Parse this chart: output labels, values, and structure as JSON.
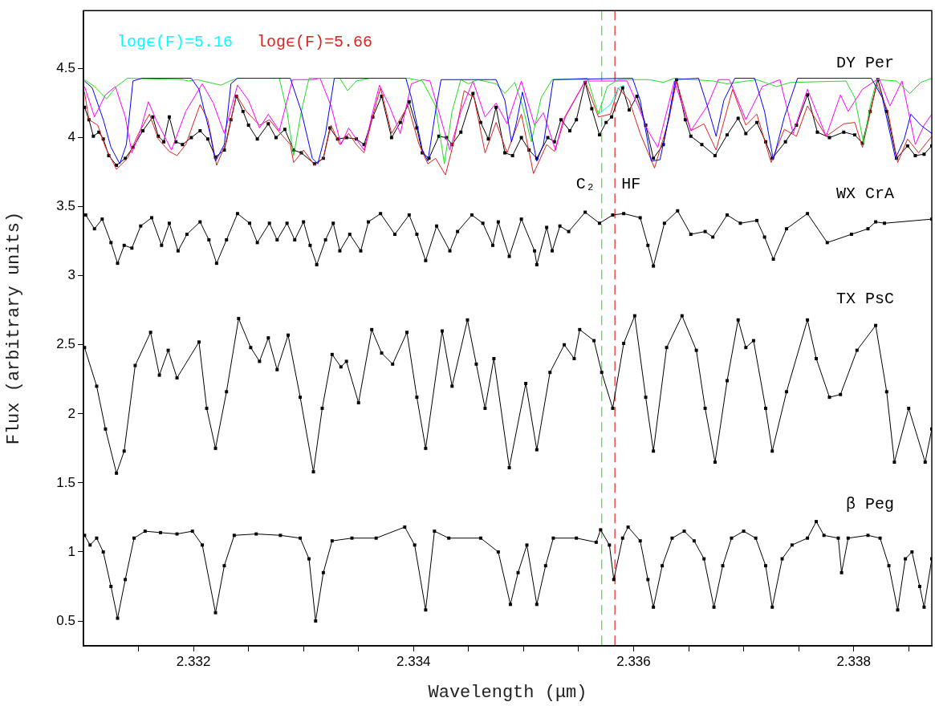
{
  "chart_data": {
    "type": "line",
    "xlabel": "Wavelength (μm)",
    "ylabel": "Flux (arbitrary units)",
    "xlim": [
      2.331,
      2.33871
    ],
    "ylim": [
      0.32,
      4.92
    ],
    "xticks": [
      {
        "value": 2.3315,
        "label": null
      },
      2.332,
      {
        "value": 2.3325,
        "label": null
      },
      {
        "value": 2.333,
        "label": null
      },
      {
        "value": 2.3335,
        "label": null
      },
      2.334,
      {
        "value": 2.3345,
        "label": null
      },
      {
        "value": 2.335,
        "label": null
      },
      {
        "value": 2.3355,
        "label": null
      },
      2.336,
      {
        "value": 2.3365,
        "label": null
      },
      {
        "value": 2.337,
        "label": null
      },
      {
        "value": 2.3375,
        "label": null
      },
      2.338,
      {
        "value": 2.3385,
        "label": null
      }
    ],
    "yticks": [
      0.5,
      1,
      1.5,
      2,
      2.5,
      3,
      3.5,
      4,
      4.5
    ],
    "grid": false,
    "legend": "top left",
    "ref_lines": [
      {
        "axis": "x",
        "value": 2.33571,
        "label": "C₂",
        "color": "#44dd44",
        "line_style": "dashed"
      },
      {
        "axis": "x",
        "value": 2.33583,
        "label": "HF",
        "color": "#ee2222",
        "line_style": "dashed"
      }
    ],
    "series": [
      {
        "color": "#0000ff",
        "type": "line",
        "marker": "none",
        "x": [
          2.33101,
          2.33108,
          2.33118,
          2.33125,
          2.33133,
          2.33139,
          2.33145,
          2.33153,
          2.33198,
          2.33205,
          2.33215,
          2.3322,
          2.33228,
          2.33234,
          2.3324,
          2.33288,
          2.33298,
          2.33308,
          2.33313,
          2.3332,
          2.33328,
          2.33393,
          2.33398,
          2.33408,
          2.33413,
          2.3342,
          2.33425,
          2.3347,
          2.33475,
          2.33483,
          2.33489,
          2.33493,
          2.33499,
          2.33503,
          2.33512,
          2.33518,
          2.33527,
          2.33599,
          2.33606,
          2.33616,
          2.33624,
          2.33632,
          2.33638,
          2.33659,
          2.33667,
          2.33675,
          2.33682,
          2.33692,
          2.3371,
          2.33719,
          2.33727,
          2.33737,
          2.33749,
          2.33816,
          2.33826,
          2.33838,
          2.33846,
          2.33852,
          2.33861,
          2.33871
        ],
        "values": [
          4.41,
          4.36,
          4.13,
          3.93,
          3.81,
          3.95,
          4.41,
          4.43,
          4.43,
          4.35,
          4.03,
          3.83,
          3.95,
          4.39,
          4.43,
          4.43,
          4.19,
          3.85,
          3.81,
          4.03,
          4.43,
          4.43,
          4.29,
          3.91,
          3.83,
          4.19,
          4.42,
          4.42,
          4.42,
          4.27,
          3.97,
          4.09,
          4.33,
          4.19,
          3.83,
          3.95,
          4.42,
          4.43,
          4.27,
          3.83,
          3.84,
          4.15,
          4.42,
          4.43,
          4.23,
          4.01,
          4.27,
          4.43,
          4.43,
          4.19,
          3.84,
          4.15,
          4.43,
          4.43,
          4.29,
          3.85,
          3.99,
          4.17,
          4.09,
          4.03
        ]
      },
      {
        "color": "#22dd22",
        "type": "line",
        "marker": "none",
        "x": [
          2.33101,
          2.3311,
          2.33121,
          2.3313,
          2.3314,
          2.3319,
          2.33195,
          2.33203,
          2.33225,
          2.33233,
          2.3324,
          2.33278,
          2.33285,
          2.33291,
          2.33298,
          2.33305,
          2.33333,
          2.3334,
          2.33348,
          2.3336,
          2.33395,
          2.33408,
          2.3342,
          2.33428,
          2.33435,
          2.33443,
          2.3345,
          2.33458,
          2.33475,
          2.33483,
          2.33492,
          2.33499,
          2.33507,
          2.33516,
          2.33526,
          2.33558,
          2.33568,
          2.33576,
          2.33586,
          2.33614,
          2.33627,
          2.33637,
          2.33672,
          2.33685,
          2.33712,
          2.3373,
          2.33743,
          2.33793,
          2.33801,
          2.33809,
          2.33815,
          2.33821,
          2.33839,
          2.33851,
          2.33861,
          2.33871
        ],
        "values": [
          4.42,
          4.37,
          4.28,
          4.37,
          4.43,
          4.42,
          4.41,
          4.42,
          4.38,
          4.41,
          4.43,
          4.43,
          4.19,
          3.87,
          4.19,
          4.43,
          4.43,
          4.34,
          4.41,
          4.43,
          4.43,
          4.41,
          4.23,
          3.81,
          4.19,
          4.42,
          4.39,
          4.42,
          4.39,
          4.32,
          4.4,
          4.23,
          3.97,
          4.29,
          4.42,
          4.43,
          4.17,
          4.37,
          4.42,
          4.42,
          4.4,
          4.43,
          4.41,
          4.39,
          4.42,
          4.37,
          4.4,
          4.41,
          4.29,
          3.96,
          4.23,
          4.42,
          4.41,
          4.32,
          4.4,
          4.43
        ]
      },
      {
        "color": "#ff00ff",
        "type": "line",
        "marker": "none",
        "x": [
          2.33101,
          2.3311,
          2.3312,
          2.33129,
          2.33138,
          2.33144,
          2.33151,
          2.33159,
          2.33166,
          2.3318,
          2.33193,
          2.33208,
          2.33218,
          2.33228,
          2.3324,
          2.3325,
          2.3326,
          2.33268,
          2.33278,
          2.3329,
          2.33308,
          2.33315,
          2.33325,
          2.33334,
          2.33341,
          2.33348,
          2.33355,
          2.33363,
          2.33369,
          2.33378,
          2.33388,
          2.33398,
          2.33408,
          2.33415,
          2.33425,
          2.33433,
          2.33443,
          2.33454,
          2.33465,
          2.33475,
          2.33485,
          2.33498,
          2.3351,
          2.33518,
          2.33529,
          2.33536,
          2.33546,
          2.33556,
          2.33594,
          2.33604,
          2.33613,
          2.33622,
          2.33632,
          2.33637,
          2.33652,
          2.33667,
          2.33677,
          2.33687,
          2.33702,
          2.33717,
          2.33733,
          2.33745,
          2.33758,
          2.33768,
          2.33775,
          2.33788,
          2.33795,
          2.33808,
          2.33823,
          2.33833,
          2.33844,
          2.33856,
          2.33864,
          2.33871
        ],
        "values": [
          4.37,
          4.15,
          4.31,
          4.37,
          4.15,
          3.89,
          4.03,
          4.26,
          4.13,
          3.91,
          4.19,
          4.39,
          4.25,
          4.03,
          4.38,
          4.27,
          4.07,
          4.17,
          4.05,
          4.42,
          4.42,
          4.43,
          4.23,
          3.95,
          4.07,
          3.99,
          3.91,
          4.19,
          4.38,
          4.23,
          4.03,
          4.39,
          4.42,
          4.41,
          4.13,
          3.91,
          4.19,
          4.41,
          4.15,
          4.25,
          4.1,
          4.41,
          4.09,
          4.18,
          3.91,
          4.13,
          4.27,
          4.41,
          4.41,
          4.23,
          4.05,
          3.93,
          4.25,
          4.41,
          4.05,
          4.23,
          4.42,
          4.42,
          4.13,
          4.37,
          4.42,
          4.03,
          4.35,
          4.15,
          4.01,
          4.31,
          4.19,
          4.35,
          4.43,
          4.23,
          4.41,
          3.95,
          4.09,
          4.17
        ]
      },
      {
        "name": "logϵ(F)=5.16",
        "color": "#00ffff",
        "type": "line",
        "marker": "none",
        "x": [
          2.33568,
          2.33579,
          2.33586,
          2.33591
        ],
        "values": [
          4.17,
          4.24,
          4.36,
          4.38
        ]
      },
      {
        "name": "logϵ(F)=5.66",
        "color": "#dd2222",
        "type": "line",
        "marker": "none",
        "x": [
          2.33101,
          2.33105,
          2.33113,
          2.3312,
          2.3313,
          2.3314,
          2.3315,
          2.3316,
          2.33168,
          2.33178,
          2.33185,
          2.33193,
          2.33206,
          2.33213,
          2.33221,
          2.3323,
          2.33239,
          2.33248,
          2.3326,
          2.33269,
          2.33278,
          2.33288,
          2.33291,
          2.333,
          2.3331,
          2.33318,
          2.33325,
          2.33333,
          2.33341,
          2.33348,
          2.33355,
          2.33364,
          2.3337,
          2.3338,
          2.33395,
          2.33405,
          2.33413,
          2.3342,
          2.33429,
          2.33436,
          2.33446,
          2.33455,
          2.33465,
          2.33475,
          2.33485,
          2.33498,
          2.33509,
          2.33521,
          2.33528,
          2.33538,
          2.33556,
          2.33568,
          2.33579,
          2.33586,
          2.33596,
          2.33606,
          2.33619,
          2.33632,
          2.33639,
          2.33652,
          2.33664,
          2.33675,
          2.3369,
          2.33702,
          2.33712,
          2.33725,
          2.33737,
          2.33748,
          2.33758,
          2.33775,
          2.33791,
          2.33801,
          2.33808,
          2.33821,
          2.33831,
          2.3384,
          2.33849,
          2.33859,
          2.33871
        ],
        "values": [
          4.33,
          4.13,
          4.09,
          3.93,
          3.77,
          3.85,
          4.03,
          4.17,
          3.99,
          3.9,
          3.87,
          3.95,
          4.24,
          4.13,
          3.8,
          3.97,
          4.31,
          4.19,
          4.09,
          4.13,
          4.04,
          3.95,
          3.82,
          3.91,
          3.8,
          3.85,
          4.09,
          3.95,
          4.03,
          3.95,
          3.89,
          4.19,
          4.36,
          4.03,
          4.23,
          3.95,
          3.81,
          3.85,
          3.73,
          3.95,
          4.34,
          4.29,
          3.89,
          4.11,
          3.89,
          4.17,
          3.74,
          3.95,
          3.9,
          4.15,
          4.41,
          4.15,
          4.17,
          4.36,
          4.27,
          4.03,
          3.78,
          4.13,
          4.41,
          4.05,
          4.1,
          3.91,
          4.35,
          4.09,
          4.17,
          3.82,
          4.06,
          4.01,
          4.23,
          4.01,
          4.1,
          4.11,
          3.93,
          4.39,
          4.19,
          3.82,
          3.99,
          3.89,
          4.01
        ]
      },
      {
        "name": "DY Per",
        "color": "#000000",
        "type": "line",
        "marker": "square",
        "x": [
          2.33101,
          2.33105,
          2.33109,
          2.33114,
          2.33118,
          2.33123,
          2.3313,
          2.33138,
          2.33145,
          2.33154,
          2.33163,
          2.33168,
          2.33173,
          2.33178,
          2.33184,
          2.3319,
          2.33198,
          2.33206,
          2.33213,
          2.3322,
          2.33228,
          2.33234,
          2.33239,
          2.33245,
          2.3325,
          2.33258,
          2.33268,
          2.33275,
          2.33283,
          2.33291,
          2.33298,
          2.3331,
          2.33318,
          2.33324,
          2.33331,
          2.33339,
          2.33348,
          2.33355,
          2.33363,
          2.33371,
          2.3338,
          2.33388,
          2.33396,
          2.33403,
          2.33408,
          2.33414,
          2.33423,
          2.3343,
          2.33435,
          2.33443,
          2.33454,
          2.33461,
          2.33468,
          2.33475,
          2.33483,
          2.3349,
          2.33498,
          2.33505,
          2.33512,
          2.33522,
          2.33528,
          2.33534,
          2.33542,
          2.33548,
          2.33556,
          2.33562,
          2.33569,
          2.33575,
          2.3358,
          2.3359,
          2.33596,
          2.33603,
          2.33611,
          2.33618,
          2.33627,
          2.33639,
          2.33647,
          2.33652,
          2.33662,
          2.33674,
          2.33685,
          2.33695,
          2.33702,
          2.33712,
          2.3372,
          2.33726,
          2.33738,
          2.33748,
          2.33758,
          2.33767,
          2.33778,
          2.33791,
          2.33801,
          2.33808,
          2.33815,
          2.33822,
          2.3383,
          2.33839,
          2.33849,
          2.33856,
          2.33864,
          2.33871
        ],
        "values": [
          4.22,
          4.13,
          4.01,
          4.04,
          3.99,
          3.87,
          3.8,
          3.85,
          3.93,
          4.05,
          4.15,
          4.01,
          3.97,
          4.15,
          3.97,
          3.95,
          4.0,
          4.05,
          3.99,
          3.86,
          3.91,
          4.13,
          4.3,
          4.19,
          4.09,
          3.99,
          4.1,
          4.0,
          4.06,
          3.91,
          3.89,
          3.81,
          3.85,
          4.07,
          3.99,
          4.0,
          3.99,
          3.95,
          4.15,
          4.3,
          4.0,
          4.11,
          4.26,
          4.07,
          3.89,
          3.85,
          4.01,
          4.0,
          3.95,
          4.04,
          4.32,
          4.11,
          3.99,
          4.22,
          3.89,
          3.87,
          4.0,
          3.91,
          3.85,
          4.0,
          3.97,
          4.13,
          4.05,
          4.13,
          4.4,
          4.21,
          4.02,
          4.11,
          4.15,
          4.36,
          4.2,
          4.3,
          4.09,
          3.85,
          3.95,
          4.42,
          4.13,
          4.01,
          3.95,
          3.87,
          4.02,
          4.14,
          4.03,
          4.11,
          3.97,
          3.85,
          3.97,
          4.09,
          4.31,
          4.04,
          4.0,
          4.04,
          4.02,
          3.96,
          4.19,
          4.42,
          4.19,
          3.85,
          3.94,
          3.87,
          3.88,
          3.94
        ]
      },
      {
        "name": "WX CrA",
        "color": "#000000",
        "type": "line",
        "marker": "square",
        "x": [
          2.33102,
          2.3311,
          2.33117,
          2.33125,
          2.33131,
          2.33137,
          2.33144,
          2.33152,
          2.33162,
          2.33171,
          2.33178,
          2.33186,
          2.33194,
          2.33206,
          2.33214,
          2.33221,
          2.3323,
          2.3324,
          2.33251,
          2.33258,
          2.33269,
          2.33276,
          2.33285,
          2.33292,
          2.333,
          2.33306,
          2.33312,
          2.3332,
          2.33327,
          2.33333,
          2.33342,
          2.33352,
          2.33359,
          2.3337,
          2.33383,
          2.33396,
          2.33403,
          2.33411,
          2.33421,
          2.33433,
          2.3344,
          2.33453,
          2.33463,
          2.33472,
          2.33477,
          2.33487,
          2.33498,
          2.3351,
          2.33512,
          2.33521,
          2.33526,
          2.33533,
          2.33541,
          2.33556,
          2.33569,
          2.33581,
          2.33591,
          2.33606,
          2.33613,
          2.33618,
          2.33628,
          2.3364,
          2.33652,
          2.33665,
          2.33672,
          2.33685,
          2.33697,
          2.33712,
          2.33719,
          2.33727,
          2.33739,
          2.33758,
          2.33776,
          2.33798,
          2.33813,
          2.3382,
          2.33828,
          2.33871
        ],
        "values": [
          3.44,
          3.34,
          3.41,
          3.24,
          3.09,
          3.22,
          3.2,
          3.36,
          3.42,
          3.22,
          3.38,
          3.18,
          3.3,
          3.39,
          3.26,
          3.09,
          3.26,
          3.45,
          3.38,
          3.24,
          3.38,
          3.26,
          3.38,
          3.26,
          3.39,
          3.22,
          3.08,
          3.26,
          3.38,
          3.18,
          3.3,
          3.18,
          3.39,
          3.45,
          3.3,
          3.44,
          3.3,
          3.11,
          3.36,
          3.18,
          3.32,
          3.44,
          3.38,
          3.22,
          3.39,
          3.14,
          3.41,
          3.18,
          3.08,
          3.35,
          3.18,
          3.36,
          3.32,
          3.46,
          3.38,
          3.44,
          3.45,
          3.42,
          3.22,
          3.07,
          3.38,
          3.47,
          3.3,
          3.32,
          3.28,
          3.44,
          3.38,
          3.4,
          3.28,
          3.12,
          3.34,
          3.45,
          3.24,
          3.3,
          3.34,
          3.39,
          3.38,
          3.41
        ]
      },
      {
        "name": "TX PsC",
        "color": "#000000",
        "type": "line",
        "marker": "square",
        "x": [
          2.33101,
          2.33112,
          2.3312,
          2.3313,
          2.33137,
          2.33147,
          2.33161,
          2.33169,
          2.33177,
          2.33185,
          2.33205,
          2.33212,
          2.3322,
          2.3323,
          2.33241,
          2.33252,
          2.3326,
          2.33268,
          2.33276,
          2.33286,
          2.33297,
          2.33309,
          2.33317,
          2.33326,
          2.33334,
          2.33339,
          2.3335,
          2.33362,
          2.33371,
          2.33381,
          2.33394,
          2.33403,
          2.33411,
          2.33426,
          2.33435,
          2.33449,
          2.33457,
          2.33465,
          2.33473,
          2.33487,
          2.33502,
          2.33512,
          2.33524,
          2.33537,
          2.33546,
          2.33551,
          2.33564,
          2.33571,
          2.33581,
          2.33591,
          2.33601,
          2.33611,
          2.33618,
          2.3363,
          2.33644,
          2.33657,
          2.33665,
          2.33674,
          2.33685,
          2.33695,
          2.33702,
          2.33709,
          2.3372,
          2.33726,
          2.33739,
          2.33758,
          2.33766,
          2.33778,
          2.33788,
          2.33803,
          2.3382,
          2.3383,
          2.33837,
          2.3385,
          2.33865,
          2.33871
        ],
        "values": [
          2.48,
          2.2,
          1.89,
          1.57,
          1.73,
          2.35,
          2.59,
          2.28,
          2.46,
          2.26,
          2.52,
          2.04,
          1.75,
          2.16,
          2.69,
          2.48,
          2.38,
          2.55,
          2.32,
          2.57,
          2.12,
          1.58,
          2.04,
          2.43,
          2.34,
          2.38,
          2.08,
          2.61,
          2.44,
          2.36,
          2.59,
          2.12,
          1.75,
          2.6,
          2.2,
          2.68,
          2.36,
          2.04,
          2.4,
          1.61,
          2.22,
          1.74,
          2.3,
          2.5,
          2.4,
          2.61,
          2.53,
          2.3,
          2.04,
          2.51,
          2.71,
          2.12,
          1.73,
          2.48,
          2.71,
          2.46,
          2.04,
          1.65,
          2.24,
          2.68,
          2.48,
          2.53,
          2.04,
          1.73,
          2.16,
          2.68,
          2.4,
          2.12,
          2.14,
          2.46,
          2.64,
          2.16,
          1.65,
          2.04,
          1.65,
          1.89
        ]
      },
      {
        "name": "β Peg",
        "color": "#000000",
        "type": "line",
        "marker": "square",
        "x": [
          2.33101,
          2.33106,
          2.33112,
          2.33118,
          2.33125,
          2.33131,
          2.33138,
          2.33146,
          2.33156,
          2.3317,
          2.33185,
          2.33199,
          2.33208,
          2.3322,
          2.33228,
          2.33237,
          2.33257,
          2.33279,
          2.33297,
          2.33305,
          2.33311,
          2.33318,
          2.33326,
          2.33344,
          2.33366,
          2.33392,
          2.33401,
          2.33411,
          2.33419,
          2.33432,
          2.33461,
          2.33477,
          2.33488,
          2.33495,
          2.33503,
          2.33512,
          2.3352,
          2.33527,
          2.33548,
          2.33566,
          2.3357,
          2.33578,
          2.33582,
          2.3359,
          2.33595,
          2.33606,
          2.33613,
          2.33618,
          2.33626,
          2.33635,
          2.33646,
          2.33655,
          2.33664,
          2.33673,
          2.33681,
          2.33689,
          2.337,
          2.33711,
          2.3372,
          2.33726,
          2.33735,
          2.33744,
          2.33758,
          2.33766,
          2.33773,
          2.33786,
          2.33789,
          2.33795,
          2.33813,
          2.33824,
          2.33832,
          2.3384,
          2.33847,
          2.33853,
          2.3386,
          2.33864,
          2.33871
        ],
        "values": [
          1.12,
          1.05,
          1.1,
          1.0,
          0.75,
          0.52,
          0.8,
          1.1,
          1.15,
          1.14,
          1.13,
          1.15,
          1.05,
          0.56,
          0.9,
          1.12,
          1.13,
          1.12,
          1.1,
          0.95,
          0.5,
          0.85,
          1.08,
          1.1,
          1.1,
          1.18,
          1.05,
          0.58,
          1.15,
          1.1,
          1.1,
          1.0,
          0.62,
          0.85,
          1.05,
          0.62,
          0.9,
          1.1,
          1.1,
          1.07,
          1.16,
          1.05,
          0.8,
          1.1,
          1.18,
          1.08,
          0.8,
          0.6,
          0.9,
          1.1,
          1.15,
          1.08,
          0.95,
          0.6,
          0.9,
          1.1,
          1.15,
          1.1,
          0.9,
          0.6,
          0.95,
          1.05,
          1.1,
          1.22,
          1.12,
          1.1,
          0.85,
          1.1,
          1.12,
          1.1,
          0.9,
          0.58,
          0.95,
          1.0,
          0.75,
          0.6,
          0.95
        ]
      }
    ]
  }
}
